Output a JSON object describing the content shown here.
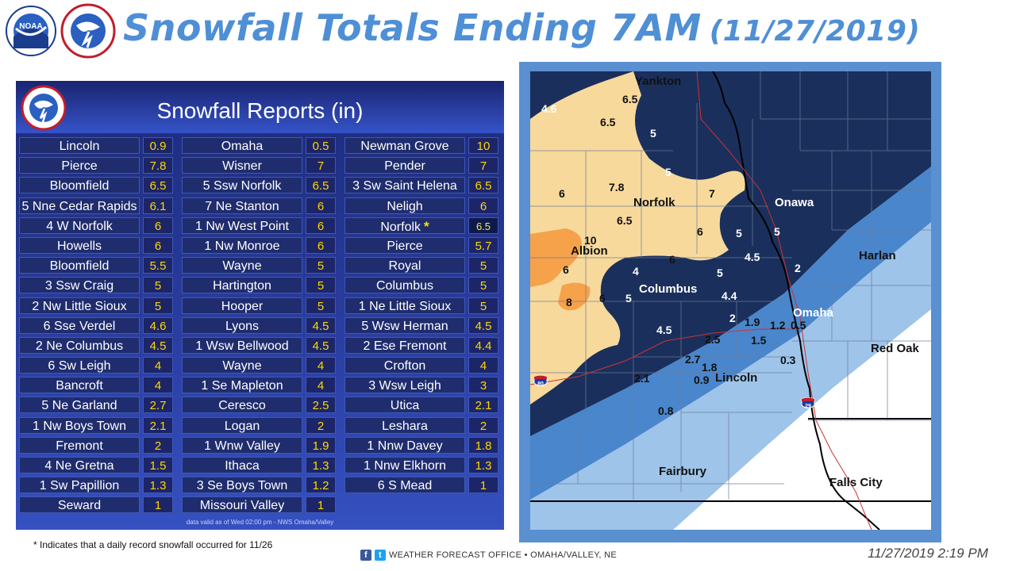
{
  "header": {
    "title": "Snowfall Totals  Ending 7AM",
    "date": "(11/27/2019)"
  },
  "panel": {
    "title": "Snowfall Reports (in)",
    "valid_note": "data valid as of Wed 02:00 pm - NWS Omaha/Valley"
  },
  "reports": {
    "col1": [
      {
        "name": "Lincoln",
        "value": "0.9"
      },
      {
        "name": "Pierce",
        "value": "7.8"
      },
      {
        "name": "Bloomfield",
        "value": "6.5"
      },
      {
        "name": "5 Nne Cedar Rapids",
        "value": "6.1"
      },
      {
        "name": "4 W Norfolk",
        "value": "6"
      },
      {
        "name": "Howells",
        "value": "6"
      },
      {
        "name": "Bloomfield",
        "value": "5.5"
      },
      {
        "name": "3 Ssw Craig",
        "value": "5"
      },
      {
        "name": "2 Nw Little Sioux",
        "value": "5"
      },
      {
        "name": "6 Sse Verdel",
        "value": "4.6"
      },
      {
        "name": "2 Ne Columbus",
        "value": "4.5"
      },
      {
        "name": "6 Sw Leigh",
        "value": "4"
      },
      {
        "name": "Bancroft",
        "value": "4"
      },
      {
        "name": "5 Ne Garland",
        "value": "2.7"
      },
      {
        "name": "1 Nw Boys Town",
        "value": "2.1"
      },
      {
        "name": "Fremont",
        "value": "2"
      },
      {
        "name": "4 Ne Gretna",
        "value": "1.5"
      },
      {
        "name": "1 Sw Papillion",
        "value": "1.3"
      },
      {
        "name": "Seward",
        "value": "1"
      }
    ],
    "col2": [
      {
        "name": "Omaha",
        "value": "0.5"
      },
      {
        "name": "Wisner",
        "value": "7"
      },
      {
        "name": "5 Ssw Norfolk",
        "value": "6.5"
      },
      {
        "name": "7 Ne Stanton",
        "value": "6"
      },
      {
        "name": "1 Nw West Point",
        "value": "6"
      },
      {
        "name": "1 Nw Monroe",
        "value": "6"
      },
      {
        "name": "Wayne",
        "value": "5"
      },
      {
        "name": "Hartington",
        "value": "5"
      },
      {
        "name": "Hooper",
        "value": "5"
      },
      {
        "name": "Lyons",
        "value": "4.5"
      },
      {
        "name": "1 Wsw Bellwood",
        "value": "4.5"
      },
      {
        "name": "Wayne",
        "value": "4"
      },
      {
        "name": "1 Se Mapleton",
        "value": "4"
      },
      {
        "name": "Ceresco",
        "value": "2.5"
      },
      {
        "name": "Logan",
        "value": "2"
      },
      {
        "name": "1 Wnw Valley",
        "value": "1.9"
      },
      {
        "name": "Ithaca",
        "value": "1.3"
      },
      {
        "name": "3 Se Boys Town",
        "value": "1.2"
      },
      {
        "name": "Missouri Valley",
        "value": "1"
      }
    ],
    "col3": [
      {
        "name": "Newman Grove",
        "value": "10"
      },
      {
        "name": "Pender",
        "value": "7"
      },
      {
        "name": "3 Sw Saint Helena",
        "value": "6.5"
      },
      {
        "name": "Neligh",
        "value": "6"
      },
      {
        "name": "Norfolk",
        "value": "6.5",
        "record": true
      },
      {
        "name": "Pierce",
        "value": "5.7"
      },
      {
        "name": "Royal",
        "value": "5"
      },
      {
        "name": "Columbus",
        "value": "5"
      },
      {
        "name": "1 Ne Little Sioux",
        "value": "5"
      },
      {
        "name": "5 Wsw Herman",
        "value": "4.5"
      },
      {
        "name": "2 Ese Fremont",
        "value": "4.4"
      },
      {
        "name": "Crofton",
        "value": "4"
      },
      {
        "name": "3 Wsw Leigh",
        "value": "3"
      },
      {
        "name": "Utica",
        "value": "2.1"
      },
      {
        "name": "Leshara",
        "value": "2"
      },
      {
        "name": "1 Nnw Davey",
        "value": "1.8"
      },
      {
        "name": "1 Nnw Elkhorn",
        "value": "1.3"
      },
      {
        "name": "6 S Mead",
        "value": "1"
      }
    ]
  },
  "record_star": "*",
  "footnote": "* Indicates that a daily record snowfall occurred for 11/26",
  "footer": {
    "office": "WEATHER FORECAST OFFICE • OMAHA/VALLEY,  NE",
    "fb_icon": "f",
    "tw_icon": "t"
  },
  "timestamp": "11/27/2019 2:19 PM",
  "map": {
    "cities": {
      "yankton": "Yankton",
      "norfolk": "Norfolk",
      "onawa": "Onawa",
      "albion": "Albion",
      "harlan": "Harlan",
      "columbus": "Columbus",
      "omaha": "Omaha",
      "red_oak": "Red Oak",
      "lincoln": "Lincoln",
      "fairbury": "Fairbury",
      "falls_city": "Falls City"
    },
    "values": {
      "v1": "4.6",
      "v2": "6.5",
      "v3": "6.5",
      "v4": "5",
      "v5": "5",
      "v6": "7.8",
      "v7": "6",
      "v8": "7",
      "v9": "6.5",
      "v10": "5",
      "v11": "5",
      "v12": "6",
      "v13": "10",
      "v14": "6",
      "v15": "4.5",
      "v16": "2",
      "v17": "4",
      "v18": "5",
      "v19": "6",
      "v20": "8",
      "v21": "6",
      "v22": "5",
      "v23": "4.4",
      "v24": "2",
      "v25": "1.9",
      "v26": "1.2",
      "v27": "0.5",
      "v28": "4.5",
      "v29": "2.5",
      "v30": "1.5",
      "v31": "2.7",
      "v32": "1.8",
      "v33": "0.3",
      "v34": "2.1",
      "v35": "0.9",
      "v36": "0.8"
    },
    "shields": {
      "i80": "80",
      "i29": "29"
    },
    "colors": {
      "heavy": "#1a2f5c",
      "moderate": "#4a86cc",
      "light": "#9ec4ea",
      "trace": "#c8def2",
      "orange_mod": "#f8d99c",
      "orange_high": "#f6a24a"
    }
  }
}
